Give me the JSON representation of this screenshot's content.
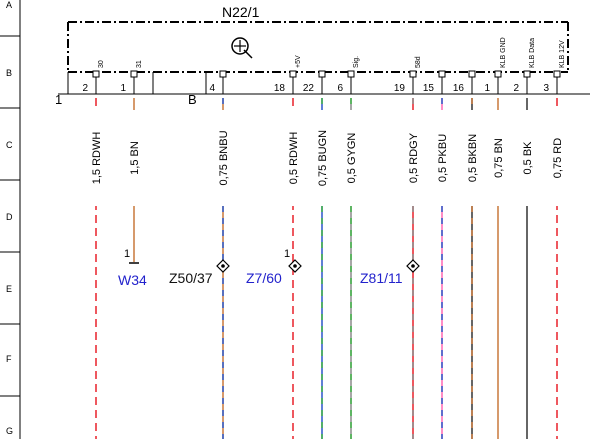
{
  "component": {
    "name": "N22/1",
    "connectors": [
      "1",
      "B"
    ],
    "pins": [
      {
        "num": "2",
        "label": "30",
        "color": "#e8202a",
        "color2": null
      },
      {
        "num": "1",
        "label": "31",
        "color": "#c8783c",
        "color2": null
      },
      {
        "num": "4",
        "label": "",
        "color": "#c8783c",
        "color2": "#2b57c9"
      },
      {
        "num": "18",
        "label": "+5V",
        "color": "#e8202a",
        "color2": null
      },
      {
        "num": "22",
        "label": "",
        "color": "#2b57c9",
        "color2": "#3cb043"
      },
      {
        "num": "6",
        "label": "Sig.",
        "color": "#8a8a8a",
        "color2": "#3cb043"
      },
      {
        "num": "19",
        "label": "58d",
        "color": "#e8202a",
        "color2": "#8a8a8a"
      },
      {
        "num": "15",
        "label": "",
        "color": "#ff69b4",
        "color2": "#2b57c9"
      },
      {
        "num": "16",
        "label": "",
        "color": "#333333",
        "color2": "#c8783c"
      },
      {
        "num": "1",
        "label": "KLB GND",
        "color": "#c8783c",
        "color2": null
      },
      {
        "num": "2",
        "label": "KLB Data",
        "color": "#333333",
        "color2": null
      },
      {
        "num": "3",
        "label": "KLB 12V",
        "color": "#e8202a",
        "color2": null
      }
    ]
  },
  "wires": [
    {
      "label": "1,5 RDWH",
      "color": "#e8202a",
      "color2": null
    },
    {
      "label": "1,5 BN",
      "color": "#c8783c",
      "color2": null
    },
    {
      "label": "0,75 BNBU",
      "color": "#c8783c",
      "color2": "#2b57c9"
    },
    {
      "label": "0,5 RDWH",
      "color": "#e8202a",
      "color2": null
    },
    {
      "label": "0,75 BUGN",
      "color": "#2b57c9",
      "color2": "#3cb043"
    },
    {
      "label": "0,5 GYGN",
      "color": "#8a8a8a",
      "color2": "#3cb043"
    },
    {
      "label": "0,5 RDGY",
      "color": "#e8202a",
      "color2": "#8a8a8a"
    },
    {
      "label": "0,5 PKBU",
      "color": "#ff69b4",
      "color2": "#2b57c9"
    },
    {
      "label": "0,5 BKBN",
      "color": "#333333",
      "color2": "#c8783c"
    },
    {
      "label": "0,75 BN",
      "color": "#c8783c",
      "color2": null
    },
    {
      "label": "0,5 BK",
      "color": "#333333",
      "color2": null
    },
    {
      "label": "0,75 RD",
      "color": "#e8202a",
      "color2": null
    }
  ],
  "references": [
    {
      "label": "W34",
      "pin": "1",
      "color": "#2222cc"
    },
    {
      "label": "Z50/37",
      "pin": "",
      "color": "#111111"
    },
    {
      "label": "Z7/60",
      "pin": "1",
      "color": "#2222cc"
    },
    {
      "label": "Z81/11",
      "pin": "",
      "color": "#2222cc"
    }
  ],
  "grid_rows": [
    "A",
    "B",
    "C",
    "D",
    "E",
    "F",
    "G"
  ]
}
